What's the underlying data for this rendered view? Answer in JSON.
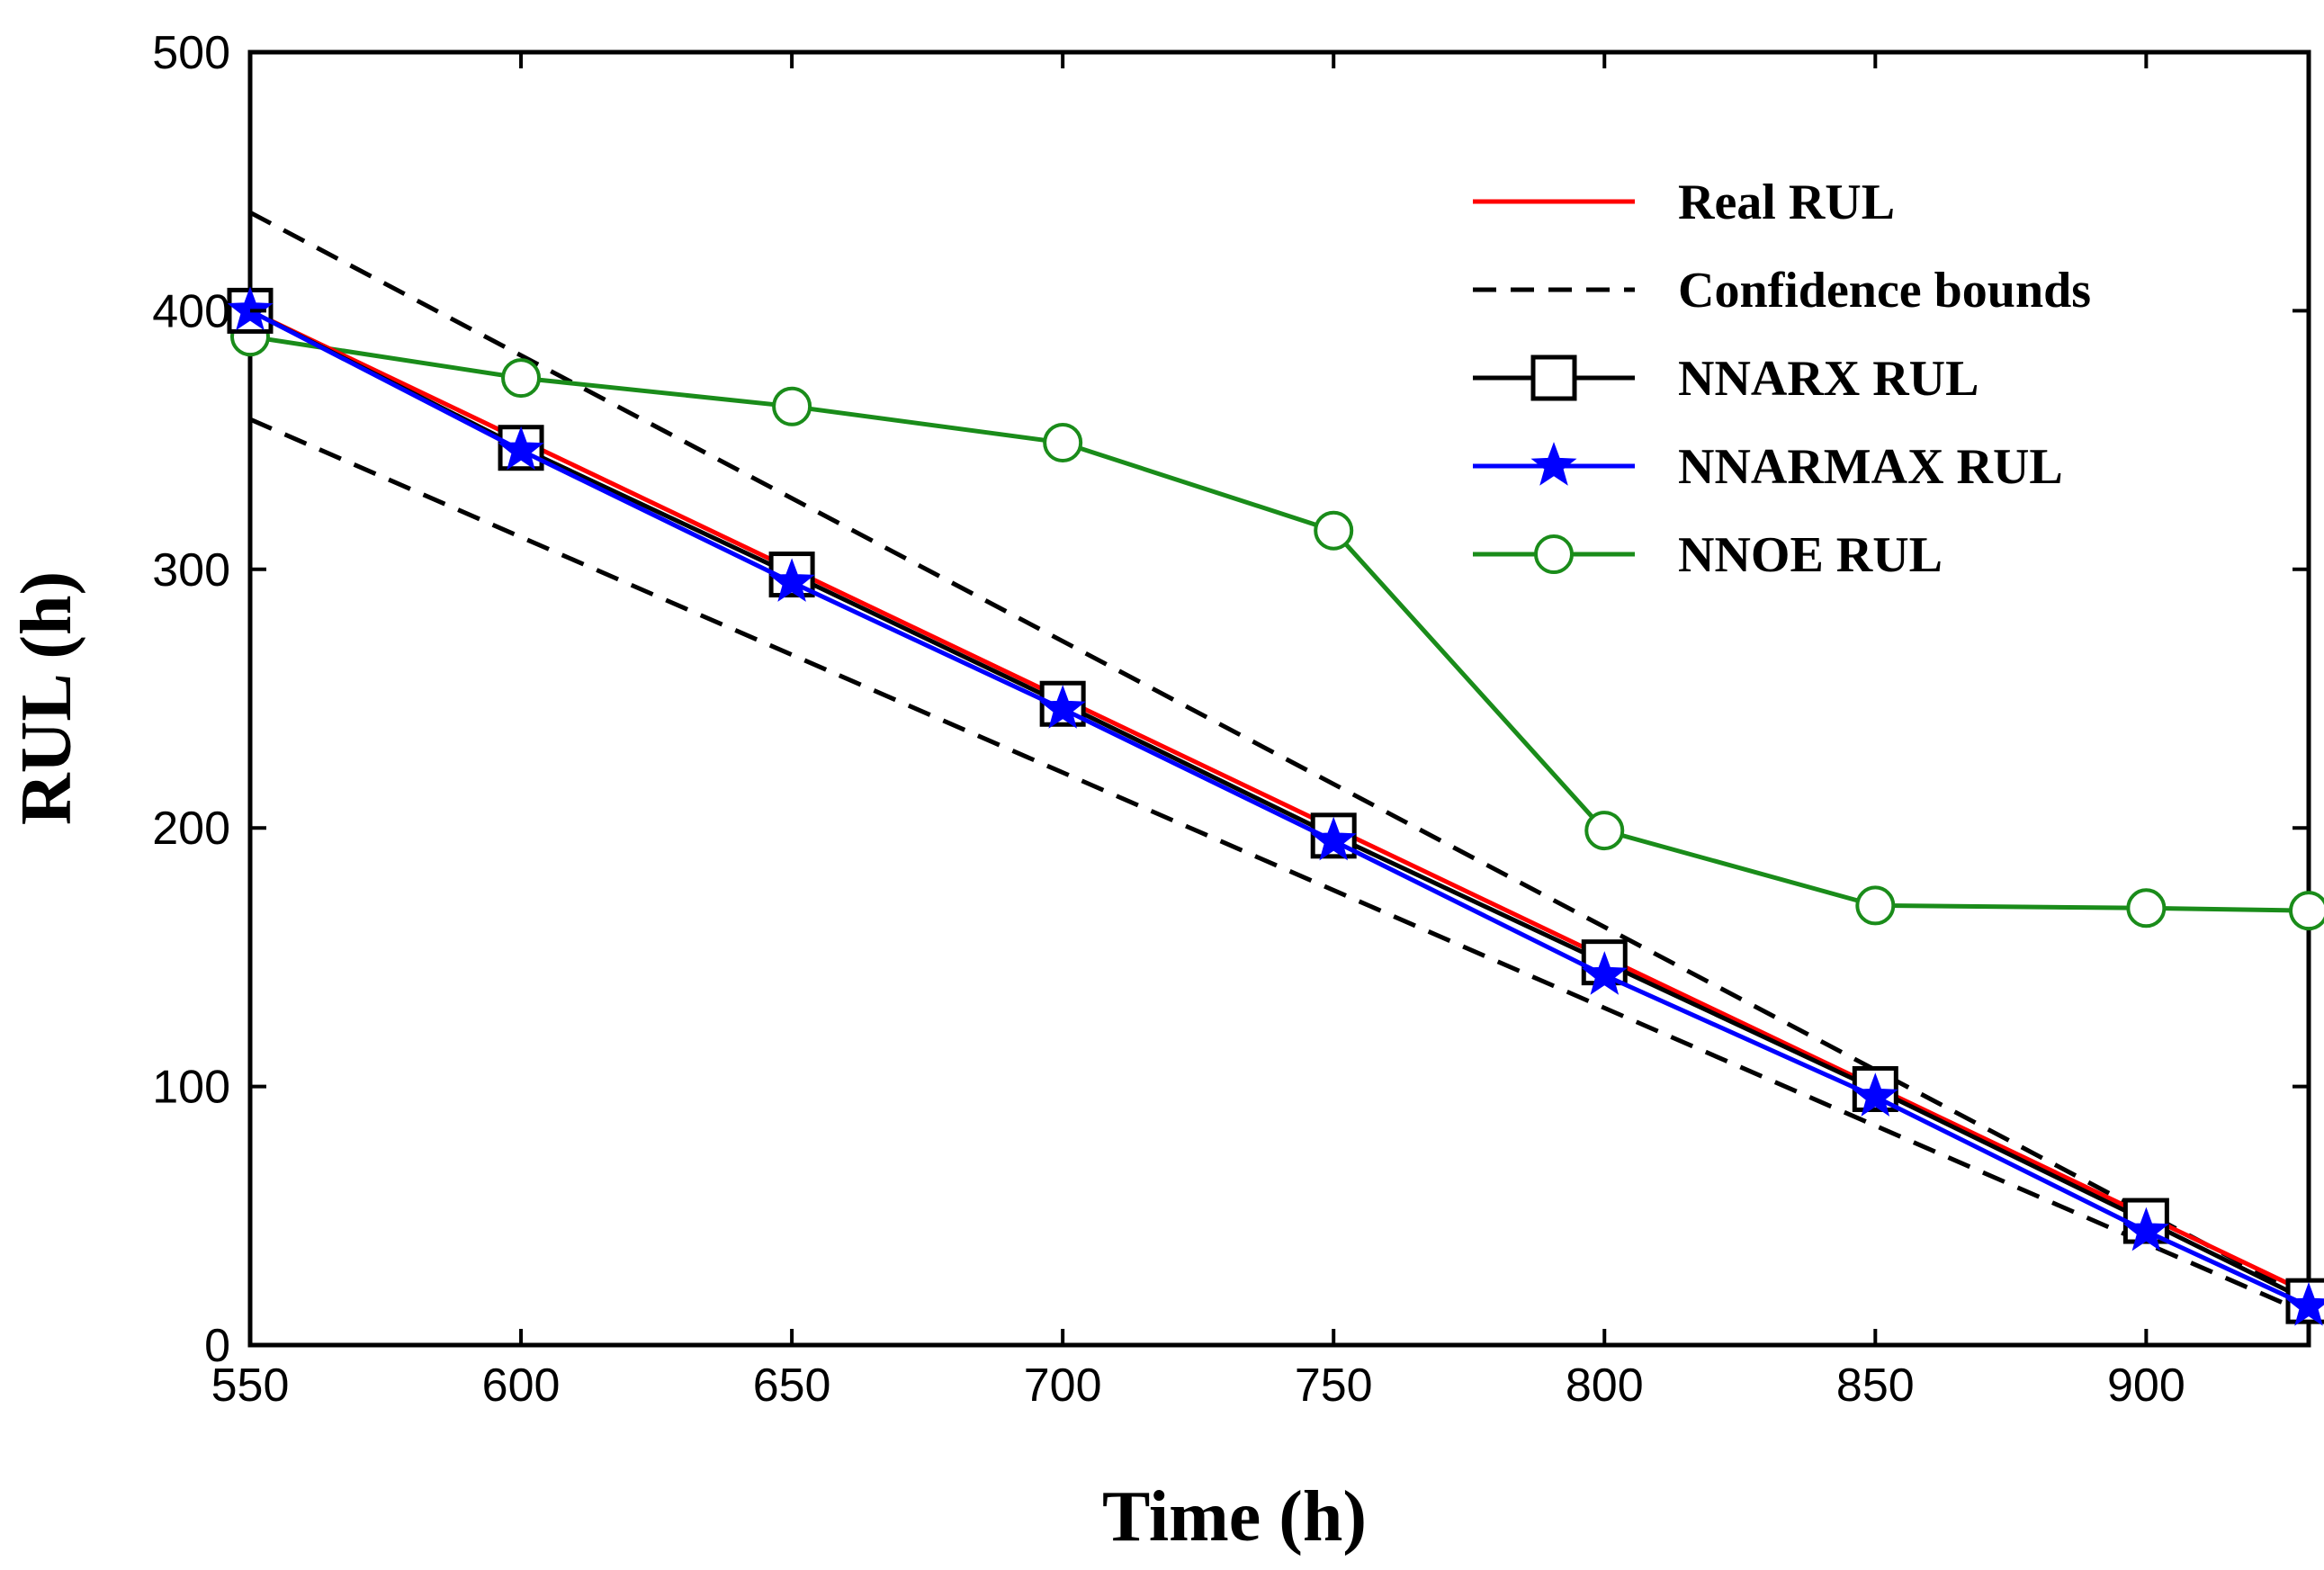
{
  "chart_data": {
    "type": "line",
    "title": "",
    "xlabel": "Time (h)",
    "ylabel": "RUL (h)",
    "xlim": [
      550,
      930
    ],
    "ylim": [
      0,
      500
    ],
    "xticks": [
      "550",
      "600",
      "650",
      "700",
      "750",
      "800",
      "850",
      "900"
    ],
    "xtick_values": [
      550,
      600,
      650,
      700,
      750,
      800,
      850,
      900
    ],
    "yticks": [
      "0",
      "100",
      "200",
      "300",
      "400",
      "500"
    ],
    "ytick_values": [
      0,
      100,
      200,
      300,
      400,
      500
    ],
    "grid": false,
    "legend_position": "top-right",
    "series": [
      {
        "name": "Real RUL",
        "color": "#ff0000",
        "style": "solid",
        "marker": "none",
        "x": [
          550,
          930
        ],
        "y": [
          400,
          20
        ]
      },
      {
        "name": "Confidence bounds",
        "color": "#000000",
        "style": "dashed",
        "marker": "none",
        "x": [
          550,
          930
        ],
        "y": [
          438,
          18
        ]
      },
      {
        "name": "Confidence bounds (lower)",
        "legend": false,
        "color": "#000000",
        "style": "dashed",
        "marker": "none",
        "x": [
          550,
          930
        ],
        "y": [
          358,
          12
        ]
      },
      {
        "name": "NNARX RUL",
        "color": "#000000",
        "style": "solid",
        "marker": "square",
        "x": [
          550,
          600,
          650,
          700,
          750,
          800,
          850,
          900,
          930
        ],
        "y": [
          400,
          347,
          298,
          248,
          197,
          148,
          99,
          48,
          17
        ]
      },
      {
        "name": "NNARMAX RUL",
        "color": "#0000ff",
        "style": "solid",
        "marker": "star",
        "x": [
          550,
          600,
          650,
          700,
          750,
          800,
          850,
          900,
          930
        ],
        "y": [
          400,
          346,
          295,
          246,
          195,
          143,
          96,
          44,
          15
        ]
      },
      {
        "name": "NNOE RUL",
        "color": "#1a8c1a",
        "style": "solid",
        "marker": "circle",
        "x": [
          550,
          600,
          650,
          700,
          750,
          800,
          850,
          900,
          930
        ],
        "y": [
          390,
          374,
          363,
          349,
          315,
          199,
          170,
          169,
          168
        ]
      }
    ]
  }
}
